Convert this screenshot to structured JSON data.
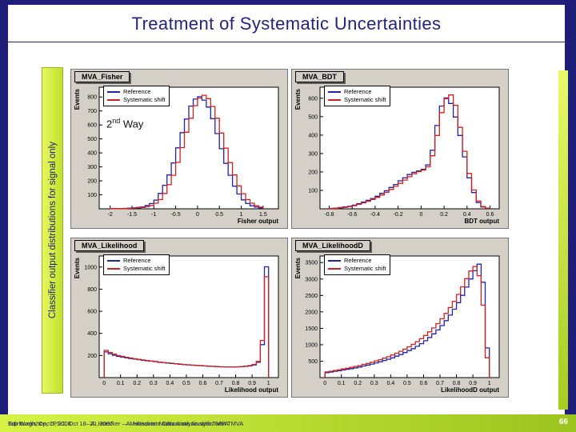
{
  "slide": {
    "title": "Treatment of Systematic Uncertainties",
    "side_label": "Classifier output distributions for signal only",
    "annotation": {
      "base": "2",
      "sup": "nd",
      "rest": " Way"
    },
    "footer_line_a": "Top Workshop, LPSC, Oct 18–20, 2007        A. Hoecker: Multivariate Analysis with TMVA",
    "footer_line_b": "Edinburgh, Dec 5, 2008            A. Hoecker — Multivariate Data Analysis with TMVA",
    "page_number": "66"
  },
  "legend": {
    "reference": "Reference",
    "systematic_shift": "Systematic shift"
  },
  "colors": {
    "reference": "#2222aa",
    "systematic": "#cc2222",
    "accent_lime": "#c8e830",
    "navy": "#1e1e78"
  },
  "chart_data": [
    {
      "type": "line",
      "title": "MVA_Fisher",
      "xlabel": "Fisher output",
      "ylabel": "Events",
      "xlim": [
        -2.25,
        1.85
      ],
      "ylim": [
        0,
        870
      ],
      "xticks": [
        -2,
        -1.5,
        -1,
        -0.5,
        0,
        0.5,
        1,
        1.5
      ],
      "yticks": [
        100,
        200,
        300,
        400,
        500,
        600,
        700,
        800
      ],
      "bin_range": [
        -2.0,
        1.5
      ],
      "series": [
        {
          "name": "Reference",
          "color": "#2222aa",
          "values": [
            2,
            1,
            2,
            3,
            5,
            7,
            10,
            14,
            24,
            38,
            62,
            110,
            168,
            242,
            328,
            436,
            545,
            642,
            735,
            785,
            802,
            778,
            728,
            645,
            538,
            430,
            325,
            240,
            162,
            106,
            64,
            38,
            22,
            12,
            6
          ]
        },
        {
          "name": "Systematic shift",
          "color": "#cc2222",
          "values": [
            1,
            1,
            2,
            2,
            3,
            5,
            7,
            10,
            15,
            24,
            40,
            66,
            110,
            172,
            240,
            332,
            438,
            548,
            648,
            738,
            792,
            812,
            788,
            732,
            648,
            542,
            434,
            330,
            242,
            164,
            108,
            66,
            40,
            22,
            12
          ]
        }
      ]
    },
    {
      "type": "line",
      "title": "MVA_BDT",
      "xlabel": "BDT output",
      "ylabel": "Events",
      "xlim": [
        -0.88,
        0.68
      ],
      "ylim": [
        0,
        660
      ],
      "xticks": [
        -0.8,
        -0.6,
        -0.4,
        -0.2,
        0,
        0.2,
        0.4,
        0.6
      ],
      "yticks": [
        100,
        200,
        300,
        400,
        500,
        600
      ],
      "bin_range": [
        -0.8,
        0.6
      ],
      "series": [
        {
          "name": "Reference",
          "color": "#2222aa",
          "values": [
            2,
            4,
            7,
            10,
            14,
            20,
            28,
            36,
            46,
            56,
            68,
            84,
            98,
            116,
            132,
            152,
            168,
            186,
            198,
            206,
            214,
            238,
            318,
            452,
            558,
            602,
            572,
            498,
            398,
            282,
            168,
            88,
            34,
            10,
            3
          ]
        },
        {
          "name": "Systematic shift",
          "color": "#cc2222",
          "values": [
            2,
            3,
            5,
            8,
            12,
            17,
            24,
            32,
            41,
            51,
            62,
            75,
            90,
            105,
            122,
            138,
            156,
            174,
            190,
            202,
            210,
            228,
            288,
            398,
            522,
            598,
            618,
            562,
            442,
            312,
            192,
            102,
            42,
            12,
            4
          ]
        }
      ]
    },
    {
      "type": "line",
      "title": "MVA_Likelihood",
      "xlabel": "Likelihood output",
      "ylabel": "Events",
      "xlim": [
        -0.03,
        1.06
      ],
      "ylim": [
        0,
        1100
      ],
      "xticks": [
        0,
        0.1,
        0.2,
        0.3,
        0.4,
        0.5,
        0.6,
        0.7,
        0.8,
        0.9,
        1
      ],
      "yticks": [
        200,
        400,
        600,
        800,
        1000
      ],
      "bin_range": [
        0,
        1
      ],
      "series": [
        {
          "name": "Reference",
          "color": "#2222aa",
          "values": [
            232,
            216,
            202,
            192,
            186,
            178,
            172,
            167,
            162,
            157,
            152,
            148,
            144,
            139,
            136,
            132,
            128,
            125,
            121,
            118,
            115,
            112,
            110,
            108,
            106,
            103,
            101,
            99,
            98,
            97,
            96,
            96,
            97,
            99,
            101,
            106,
            114,
            138,
            298,
            1002
          ]
        },
        {
          "name": "Systematic shift",
          "color": "#cc2222",
          "values": [
            246,
            228,
            212,
            200,
            192,
            184,
            177,
            171,
            165,
            160,
            155,
            150,
            146,
            141,
            137,
            133,
            130,
            126,
            123,
            119,
            116,
            113,
            111,
            109,
            106,
            104,
            102,
            100,
            98,
            97,
            97,
            97,
            98,
            100,
            103,
            109,
            118,
            146,
            336,
            912
          ]
        }
      ]
    },
    {
      "type": "line",
      "title": "MVA_LikelihoodD",
      "xlabel": "LikelihoodD output",
      "ylabel": "Events",
      "xlim": [
        -0.03,
        1.06
      ],
      "ylim": [
        0,
        3700
      ],
      "xticks": [
        0,
        0.1,
        0.2,
        0.3,
        0.4,
        0.5,
        0.6,
        0.7,
        0.8,
        0.9,
        1
      ],
      "yticks": [
        500,
        1000,
        1500,
        2000,
        2500,
        3000,
        3500
      ],
      "bin_range": [
        0,
        1
      ],
      "series": [
        {
          "name": "Reference",
          "color": "#2222aa",
          "values": [
            148,
            168,
            192,
            208,
            232,
            252,
            272,
            298,
            322,
            352,
            382,
            412,
            448,
            482,
            522,
            558,
            602,
            652,
            702,
            762,
            822,
            882,
            952,
            1032,
            1122,
            1222,
            1332,
            1452,
            1582,
            1732,
            1902,
            2082,
            2282,
            2502,
            2752,
            3002,
            3252,
            3452,
            2902,
            902
          ]
        },
        {
          "name": "Systematic shift",
          "color": "#cc2222",
          "values": [
            172,
            192,
            214,
            236,
            262,
            286,
            312,
            340,
            366,
            402,
            432,
            466,
            506,
            546,
            592,
            636,
            686,
            742,
            802,
            866,
            936,
            1012,
            1092,
            1182,
            1282,
            1392,
            1512,
            1642,
            1792,
            1952,
            2132,
            2322,
            2532,
            2762,
            3012,
            3242,
            3382,
            3102,
            2202,
            602
          ]
        }
      ]
    }
  ]
}
